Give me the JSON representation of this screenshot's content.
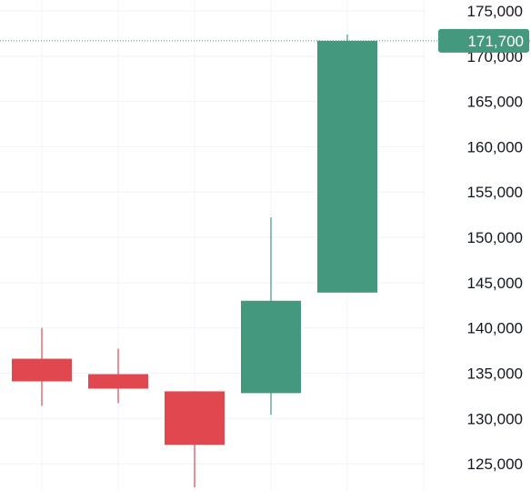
{
  "chart_data": {
    "type": "candlestick",
    "y_ticks": [
      125000,
      130000,
      135000,
      140000,
      145000,
      150000,
      155000,
      160000,
      165000,
      170000,
      175000
    ],
    "y_tick_labels": [
      "125,000",
      "130,000",
      "135,000",
      "140,000",
      "145,000",
      "150,000",
      "155,000",
      "160,000",
      "165,000",
      "170,000",
      "175,000"
    ],
    "ylim": [
      122000,
      176200
    ],
    "grid": true,
    "candles": [
      {
        "open": 136600,
        "high": 140000,
        "low": 131400,
        "close": 134100
      },
      {
        "open": 134900,
        "high": 137700,
        "low": 131700,
        "close": 133300
      },
      {
        "open": 133000,
        "high": 133000,
        "low": 122400,
        "close": 127100
      },
      {
        "open": 132800,
        "high": 152200,
        "low": 130400,
        "close": 143000
      },
      {
        "open": 143900,
        "high": 172400,
        "low": 143900,
        "close": 171700
      }
    ],
    "last_price": {
      "value": 171700,
      "label": "171,700"
    },
    "colors": {
      "up": "#44987e",
      "down": "#e0474f",
      "grid": "#f0f3fa",
      "price_line": "#44987e"
    }
  }
}
